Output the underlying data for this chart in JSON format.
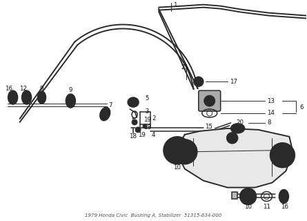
{
  "bg_color": "#ffffff",
  "line_color": "#2a2a2a",
  "label_color": "#111111",
  "fig_width": 4.45,
  "fig_height": 3.2,
  "dpi": 100
}
